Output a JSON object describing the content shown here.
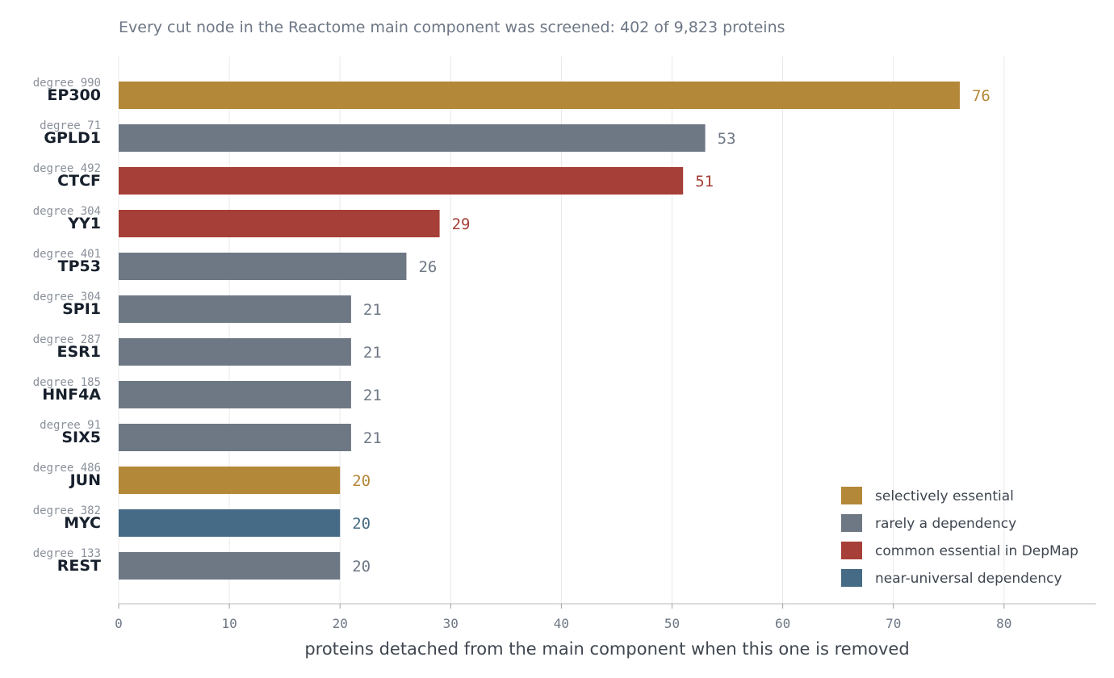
{
  "chart_data": {
    "type": "bar",
    "orientation": "horizontal",
    "subtitle": "Every cut node in the Reactome main component was screened: 402 of 9,823 proteins",
    "xlabel": "proteins detached from the main component when this one is removed",
    "xlim": [
      0,
      88
    ],
    "xticks": [
      0,
      10,
      20,
      30,
      40,
      50,
      60,
      70,
      80
    ],
    "grid": "vertical",
    "legend_position": "bottom-right",
    "degree_prefix": "degree",
    "categories": [
      {
        "key": "selective",
        "label": "selectively essential",
        "color": "#b38838"
      },
      {
        "key": "rare",
        "label": "rarely a dependency",
        "color": "#6e7885"
      },
      {
        "key": "common",
        "label": "common essential in DepMap",
        "color": "#a63f38"
      },
      {
        "key": "universal",
        "label": "near-universal dependency",
        "color": "#466b86"
      }
    ],
    "bars": [
      {
        "name": "EP300",
        "degree": 990,
        "value": 76,
        "category": "selective"
      },
      {
        "name": "GPLD1",
        "degree": 71,
        "value": 53,
        "category": "rare"
      },
      {
        "name": "CTCF",
        "degree": 492,
        "value": 51,
        "category": "common"
      },
      {
        "name": "YY1",
        "degree": 304,
        "value": 29,
        "category": "common"
      },
      {
        "name": "TP53",
        "degree": 401,
        "value": 26,
        "category": "rare"
      },
      {
        "name": "SPI1",
        "degree": 304,
        "value": 21,
        "category": "rare"
      },
      {
        "name": "ESR1",
        "degree": 287,
        "value": 21,
        "category": "rare"
      },
      {
        "name": "HNF4A",
        "degree": 185,
        "value": 21,
        "category": "rare"
      },
      {
        "name": "SIX5",
        "degree": 91,
        "value": 21,
        "category": "rare"
      },
      {
        "name": "JUN",
        "degree": 486,
        "value": 20,
        "category": "selective"
      },
      {
        "name": "MYC",
        "degree": 382,
        "value": 20,
        "category": "universal"
      },
      {
        "name": "REST",
        "degree": 133,
        "value": 20,
        "category": "rare"
      }
    ]
  }
}
